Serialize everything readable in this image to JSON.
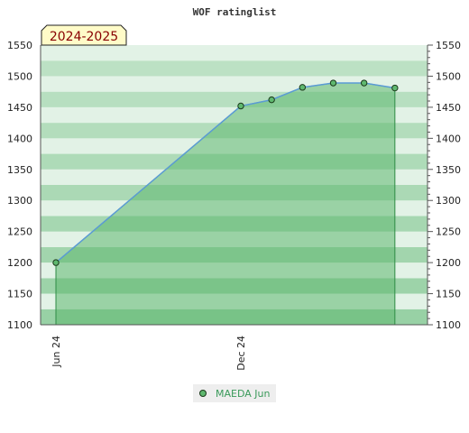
{
  "chart_data": {
    "type": "area",
    "title": "WOF ratinglist",
    "season_label": "2024-2025",
    "xlabel": "",
    "ylabel": "",
    "ylim": [
      1100,
      1550
    ],
    "y_ticks": [
      1100,
      1150,
      1200,
      1250,
      1300,
      1350,
      1400,
      1450,
      1500,
      1550
    ],
    "x_ticks": [
      {
        "label": "Jun 24",
        "month_index": 0
      },
      {
        "label": "Dec 24",
        "month_index": 6
      }
    ],
    "series": [
      {
        "name": "MAEDA Jun",
        "points": [
          {
            "month_index": 0,
            "value": 1200
          },
          {
            "month_index": 6,
            "value": 1452
          },
          {
            "month_index": 7,
            "value": 1462
          },
          {
            "month_index": 8,
            "value": 1482
          },
          {
            "month_index": 9,
            "value": 1489
          },
          {
            "month_index": 10,
            "value": 1489
          },
          {
            "month_index": 11,
            "value": 1481
          }
        ]
      }
    ],
    "grid": "banded",
    "legend_position": "bottom"
  },
  "colors": {
    "fill": "#5fb86f",
    "line": "#5b9bd5",
    "marker_fill": "#5fb86f",
    "marker_stroke": "#1a3a1a",
    "band_dark": "#8dcc9b",
    "band_light": "#dff1e3",
    "legend_text": "#3a9a5a",
    "season_text": "#880000",
    "season_bg": "#fffbc8"
  }
}
